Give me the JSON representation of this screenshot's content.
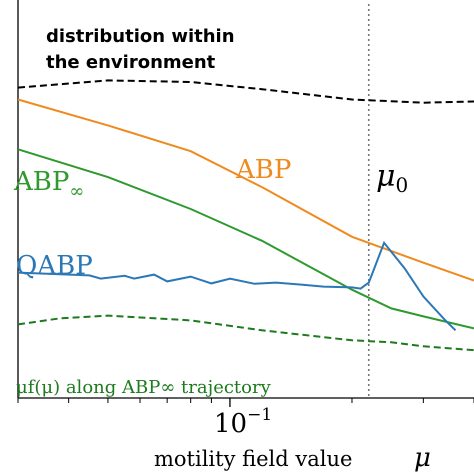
{
  "chart_data": {
    "type": "line",
    "xscale": "log",
    "xlabel": "motility field value",
    "xlabel_symbol": "μ",
    "xtick_label": {
      "base": "10",
      "exponent": "−1"
    },
    "marker": {
      "label": "μ",
      "subscript": "0",
      "x": 0.22
    },
    "colors": {
      "ABP": "#ef8a1f",
      "ABP_inf": "#2e9a2e",
      "QABP": "#2b78b6",
      "env": "#000000",
      "muf": "#1e7a1e",
      "marker": "#777777"
    },
    "annotations": {
      "env_line1": "distribution within",
      "env_line2": "the environment",
      "abp": "ABP",
      "abp_inf_main": "ABP",
      "abp_inf_sub": "∞",
      "qabp": "QABP",
      "muf_text": "μf(μ) along ABP∞ trajectory"
    },
    "series": [
      {
        "key": "env",
        "x": [
          0.03,
          0.05,
          0.08,
          0.12,
          0.2,
          0.3,
          0.4
        ],
        "y": [
          0.78,
          0.798,
          0.794,
          0.776,
          0.75,
          0.742,
          0.745
        ]
      },
      {
        "key": "ABP",
        "x": [
          0.03,
          0.05,
          0.08,
          0.12,
          0.2,
          0.3,
          0.4
        ],
        "y": [
          0.75,
          0.685,
          0.62,
          0.53,
          0.405,
          0.34,
          0.295
        ]
      },
      {
        "key": "ABP_inf",
        "x": [
          0.03,
          0.05,
          0.08,
          0.12,
          0.2,
          0.25,
          0.3,
          0.4
        ],
        "y": [
          0.625,
          0.555,
          0.475,
          0.395,
          0.272,
          0.225,
          0.205,
          0.175
        ]
      },
      {
        "key": "QABP",
        "x": [
          0.03,
          0.045,
          0.048,
          0.055,
          0.058,
          0.065,
          0.07,
          0.08,
          0.09,
          0.1,
          0.115,
          0.13,
          0.15,
          0.17,
          0.2,
          0.21,
          0.22,
          0.24,
          0.27,
          0.3,
          0.34,
          0.36
        ],
        "y": [
          0.315,
          0.308,
          0.3,
          0.307,
          0.3,
          0.31,
          0.293,
          0.305,
          0.288,
          0.3,
          0.287,
          0.29,
          0.285,
          0.28,
          0.278,
          0.275,
          0.29,
          0.39,
          0.325,
          0.255,
          0.195,
          0.17
        ]
      },
      {
        "key": "muf",
        "x": [
          0.03,
          0.038,
          0.05,
          0.08,
          0.12,
          0.2,
          0.25,
          0.3,
          0.4
        ],
        "y": [
          0.185,
          0.2,
          0.207,
          0.195,
          0.17,
          0.145,
          0.14,
          0.13,
          0.12
        ]
      }
    ]
  }
}
